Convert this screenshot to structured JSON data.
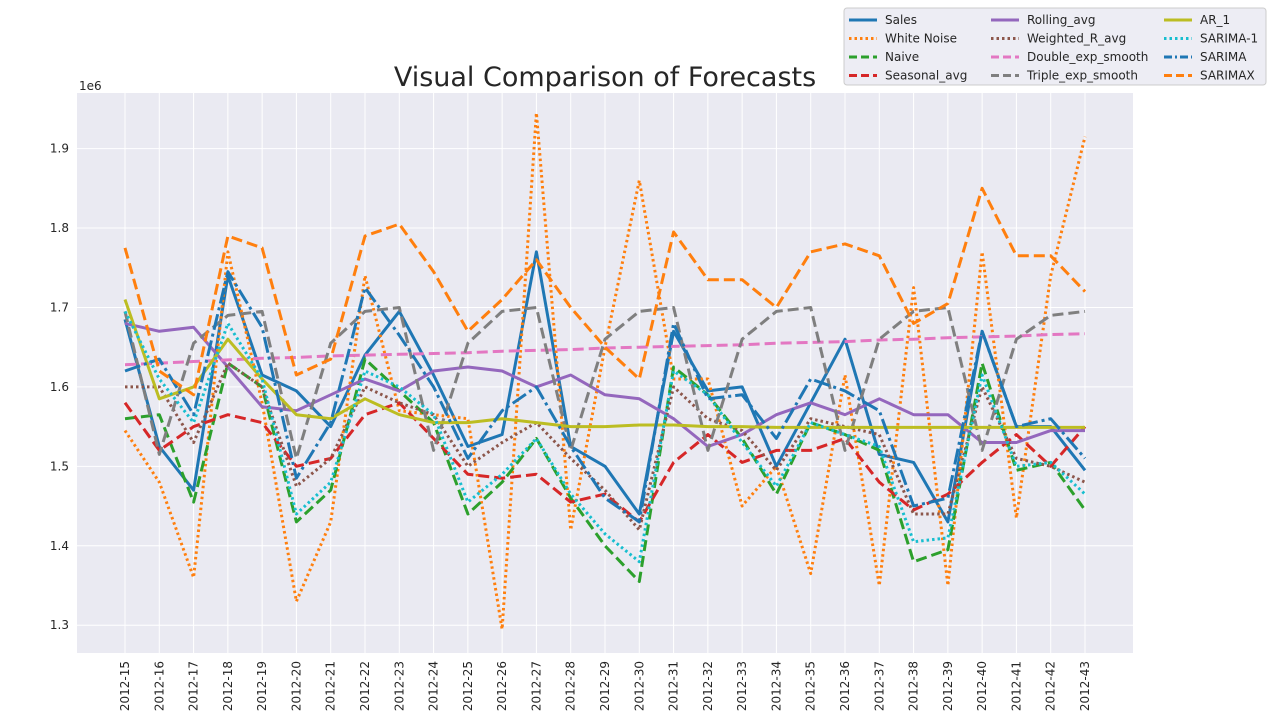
{
  "chart_data": {
    "type": "line",
    "title": "Visual Comparison of Forecasts",
    "xlabel": "",
    "ylabel": "",
    "y_multiplier": "1e6",
    "ylim": [
      1.265,
      1.97
    ],
    "yticks": [
      1.3,
      1.4,
      1.5,
      1.6,
      1.7,
      1.8,
      1.9
    ],
    "grid": true,
    "legend_position": "top-right",
    "categories": [
      "2012-15",
      "2012-16",
      "2012-17",
      "2012-18",
      "2012-19",
      "2012-20",
      "2012-21",
      "2012-22",
      "2012-23",
      "2012-24",
      "2012-25",
      "2012-26",
      "2012-27",
      "2012-28",
      "2012-29",
      "2012-30",
      "2012-31",
      "2012-32",
      "2012-33",
      "2012-34",
      "2012-35",
      "2012-36",
      "2012-37",
      "2012-38",
      "2012-39",
      "2012-40",
      "2012-41",
      "2012-42",
      "2012-43"
    ],
    "series": [
      {
        "name": "Sales",
        "color": "#1f77b4",
        "style": "solid",
        "values": [
          1.685,
          1.525,
          1.47,
          1.74,
          1.615,
          1.595,
          1.55,
          1.64,
          1.695,
          1.615,
          1.525,
          1.54,
          1.77,
          1.525,
          1.5,
          1.44,
          1.67,
          1.595,
          1.6,
          1.5,
          1.58,
          1.66,
          1.515,
          1.505,
          1.43,
          1.67,
          1.55,
          1.55,
          1.495
        ]
      },
      {
        "name": "White Noise",
        "color": "#ff7f0e",
        "style": "dotted",
        "values": [
          1.545,
          1.48,
          1.36,
          1.77,
          1.58,
          1.33,
          1.43,
          1.74,
          1.57,
          1.565,
          1.56,
          1.295,
          1.945,
          1.42,
          1.65,
          1.86,
          1.61,
          1.61,
          1.45,
          1.5,
          1.365,
          1.615,
          1.35,
          1.725,
          1.35,
          1.77,
          1.435,
          1.74,
          1.915
        ]
      },
      {
        "name": "Naive",
        "color": "#2ca02c",
        "style": "dashed",
        "values": [
          1.56,
          1.565,
          1.455,
          1.63,
          1.6,
          1.43,
          1.47,
          1.635,
          1.595,
          1.555,
          1.44,
          1.48,
          1.535,
          1.46,
          1.4,
          1.355,
          1.625,
          1.59,
          1.535,
          1.465,
          1.555,
          1.54,
          1.52,
          1.38,
          1.395,
          1.63,
          1.495,
          1.505,
          1.445
        ]
      },
      {
        "name": "Seasonal_avg",
        "color": "#d62728",
        "style": "dashed",
        "values": [
          1.58,
          1.52,
          1.55,
          1.565,
          1.555,
          1.5,
          1.51,
          1.565,
          1.58,
          1.535,
          1.49,
          1.485,
          1.49,
          1.455,
          1.465,
          1.43,
          1.505,
          1.54,
          1.505,
          1.52,
          1.52,
          1.535,
          1.48,
          1.445,
          1.465,
          1.505,
          1.54,
          1.5,
          1.55
        ]
      },
      {
        "name": "Rolling_avg",
        "color": "#9467bd",
        "style": "solid",
        "values": [
          1.68,
          1.67,
          1.675,
          1.625,
          1.575,
          1.57,
          1.59,
          1.61,
          1.595,
          1.62,
          1.625,
          1.62,
          1.6,
          1.615,
          1.59,
          1.585,
          1.56,
          1.525,
          1.54,
          1.565,
          1.58,
          1.565,
          1.585,
          1.565,
          1.565,
          1.53,
          1.53,
          1.545,
          1.545
        ]
      },
      {
        "name": "Weighted_R_avg",
        "color": "#8c564b",
        "style": "dotted",
        "values": [
          1.6,
          1.6,
          1.53,
          1.63,
          1.6,
          1.475,
          1.51,
          1.6,
          1.58,
          1.565,
          1.5,
          1.53,
          1.555,
          1.51,
          1.47,
          1.42,
          1.6,
          1.56,
          1.545,
          1.495,
          1.56,
          1.55,
          1.54,
          1.44,
          1.44,
          1.6,
          1.51,
          1.5,
          1.48
        ]
      },
      {
        "name": "Double_exp_smooth",
        "color": "#e377c2",
        "style": "dashed",
        "values": [
          1.628,
          1.63,
          1.632,
          1.634,
          1.636,
          1.637,
          1.639,
          1.64,
          1.641,
          1.642,
          1.643,
          1.645,
          1.646,
          1.647,
          1.649,
          1.65,
          1.651,
          1.652,
          1.653,
          1.655,
          1.656,
          1.657,
          1.659,
          1.66,
          1.662,
          1.663,
          1.664,
          1.666,
          1.667
        ]
      },
      {
        "name": "Triple_exp_smooth",
        "color": "#7f7f7f",
        "style": "dashed",
        "values": [
          1.695,
          1.515,
          1.655,
          1.69,
          1.695,
          1.51,
          1.655,
          1.695,
          1.7,
          1.52,
          1.655,
          1.695,
          1.7,
          1.52,
          1.66,
          1.695,
          1.7,
          1.52,
          1.66,
          1.695,
          1.7,
          1.52,
          1.66,
          1.695,
          1.7,
          1.52,
          1.66,
          1.69,
          1.695
        ]
      },
      {
        "name": "AR_1",
        "color": "#bcbd22",
        "style": "solid",
        "values": [
          1.71,
          1.585,
          1.6,
          1.66,
          1.61,
          1.565,
          1.56,
          1.585,
          1.565,
          1.555,
          1.555,
          1.56,
          1.555,
          1.55,
          1.55,
          1.552,
          1.552,
          1.55,
          1.55,
          1.549,
          1.549,
          1.549,
          1.549,
          1.549,
          1.549,
          1.549,
          1.549,
          1.549,
          1.549
        ]
      },
      {
        "name": "SARIMA-1",
        "color": "#17becf",
        "style": "dotted",
        "values": [
          1.695,
          1.61,
          1.555,
          1.68,
          1.61,
          1.44,
          1.48,
          1.62,
          1.6,
          1.565,
          1.455,
          1.49,
          1.535,
          1.465,
          1.415,
          1.38,
          1.62,
          1.59,
          1.53,
          1.475,
          1.555,
          1.54,
          1.525,
          1.405,
          1.41,
          1.615,
          1.5,
          1.505,
          1.465
        ]
      },
      {
        "name": "SARIMA",
        "color": "#1f77b4",
        "style": "dashdot",
        "values": [
          1.62,
          1.635,
          1.565,
          1.745,
          1.675,
          1.485,
          1.555,
          1.725,
          1.665,
          1.6,
          1.51,
          1.57,
          1.6,
          1.525,
          1.46,
          1.43,
          1.68,
          1.585,
          1.59,
          1.535,
          1.61,
          1.595,
          1.57,
          1.45,
          1.46,
          1.67,
          1.55,
          1.56,
          1.51
        ]
      },
      {
        "name": "SARIMAX",
        "color": "#ff7f0e",
        "style": "dashed",
        "values": [
          1.775,
          1.62,
          1.59,
          1.79,
          1.775,
          1.615,
          1.635,
          1.79,
          1.805,
          1.745,
          1.67,
          1.71,
          1.76,
          1.7,
          1.65,
          1.61,
          1.795,
          1.735,
          1.735,
          1.7,
          1.77,
          1.78,
          1.765,
          1.68,
          1.705,
          1.85,
          1.765,
          1.765,
          1.72
        ]
      }
    ]
  }
}
